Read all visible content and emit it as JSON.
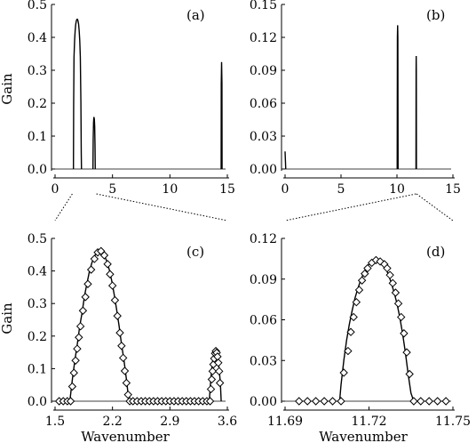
{
  "figure": {
    "ylabel": "Gain",
    "xlabel": "Wavenumber"
  },
  "chart_data": [
    {
      "id": "a",
      "type": "line",
      "panel_label": "(a)",
      "xlim": [
        0,
        15
      ],
      "ylim": [
        0,
        0.5
      ],
      "xticks": [
        0,
        5,
        10,
        15
      ],
      "xtick_labels": [
        "0",
        "5",
        "10",
        "15"
      ],
      "yticks": [
        0,
        0.1,
        0.2,
        0.3,
        0.4,
        0.5
      ],
      "ytick_labels": [
        "0.0",
        "0.1",
        "0.2",
        "0.3",
        "0.4",
        "0.5"
      ],
      "ylabel": "Gain",
      "xlabel": "",
      "series": [
        {
          "x": [
            1.6,
            1.62,
            1.65,
            1.7,
            1.75,
            1.8,
            1.85,
            1.9,
            1.95,
            2.0,
            2.05,
            2.1,
            2.15,
            2.2,
            2.25,
            2.28,
            2.3
          ],
          "y": [
            0.0,
            0.2,
            0.34,
            0.39,
            0.42,
            0.44,
            0.45,
            0.455,
            0.455,
            0.45,
            0.44,
            0.42,
            0.39,
            0.34,
            0.2,
            0.05,
            0.0
          ]
        },
        {
          "x": [
            3.3,
            3.32,
            3.35,
            3.38,
            3.42,
            3.45,
            3.48,
            3.5
          ],
          "y": [
            0.0,
            0.09,
            0.14,
            0.158,
            0.152,
            0.13,
            0.07,
            0.0
          ]
        },
        {
          "x": [
            14.46,
            14.47,
            14.5,
            14.53,
            14.54
          ],
          "y": [
            0.0,
            0.26,
            0.325,
            0.26,
            0.0
          ]
        }
      ]
    },
    {
      "id": "b",
      "type": "line",
      "panel_label": "(b)",
      "xlim": [
        0,
        15
      ],
      "ylim": [
        0,
        0.15
      ],
      "xticks": [
        0,
        5,
        10,
        15
      ],
      "xtick_labels": [
        "0",
        "5",
        "10",
        "15"
      ],
      "yticks": [
        0,
        0.03,
        0.06,
        0.09,
        0.12,
        0.15
      ],
      "ytick_labels": [
        "0.00",
        "0.03",
        "0.06",
        "0.09",
        "0.12",
        "0.15"
      ],
      "xlabel": "",
      "series": [
        {
          "x": [
            0.0,
            0.03,
            0.06
          ],
          "y": [
            0.016,
            0.008,
            0.0
          ]
        },
        {
          "x": [
            10.02,
            10.04,
            10.06,
            10.08,
            10.1
          ],
          "y": [
            0.0,
            0.12,
            0.131,
            0.12,
            0.0
          ]
        },
        {
          "x": [
            11.7,
            11.71,
            11.72,
            11.73,
            11.74
          ],
          "y": [
            0.0,
            0.09,
            0.103,
            0.09,
            0.0
          ]
        }
      ]
    },
    {
      "id": "c",
      "type": "line",
      "panel_label": "(c)",
      "xlim": [
        1.5,
        3.6
      ],
      "ylim": [
        0,
        0.5
      ],
      "xticks": [
        1.5,
        2.2,
        2.9,
        3.6
      ],
      "xtick_labels": [
        "1.5",
        "2.2",
        "2.9",
        "3.6"
      ],
      "yticks": [
        0,
        0.1,
        0.2,
        0.3,
        0.4,
        0.5
      ],
      "ytick_labels": [
        "0.0",
        "0.1",
        "0.2",
        "0.3",
        "0.4",
        "0.5"
      ],
      "ylabel": "Gain",
      "xlabel": "Wavenumber",
      "series": [
        {
          "x": [
            1.5,
            1.55,
            1.6,
            1.65,
            1.7,
            1.75,
            1.8,
            1.85,
            1.9,
            1.95,
            2.0,
            2.05,
            2.1,
            2.15,
            2.2,
            2.25,
            2.3,
            2.35,
            2.4,
            2.45,
            2.5,
            2.55,
            2.6,
            2.65,
            2.7,
            2.75,
            2.8,
            2.85,
            2.9,
            2.95,
            3.0,
            3.05,
            3.1,
            3.15,
            3.2,
            3.25,
            3.3,
            3.35,
            3.4,
            3.45,
            3.5,
            3.55,
            3.6
          ],
          "y": [
            0.0,
            0.0,
            0.0,
            0.0,
            0.0,
            0.0,
            0.0,
            0.0,
            0.0,
            0.0,
            0.0,
            0.0,
            0.0,
            0.0,
            0.0,
            0.0,
            0.0,
            0.0,
            0.0,
            0.0,
            0.0,
            0.0,
            0.0,
            0.0,
            0.0,
            0.0,
            0.0,
            0.0,
            0.0,
            0.0,
            0.0,
            0.0,
            0.0,
            0.0,
            0.0,
            0.0,
            0.0,
            0.0,
            0.0,
            0.0,
            0.0,
            0.0,
            0.0
          ],
          "role": "axis"
        },
        {
          "x": [
            1.67,
            1.68,
            1.71,
            1.74,
            1.77,
            1.8,
            1.83,
            1.86,
            1.89,
            1.92,
            1.95,
            1.98,
            2.01,
            2.04,
            2.07,
            2.1,
            2.13,
            2.16,
            2.19,
            2.22,
            2.25,
            2.28,
            2.31,
            2.34,
            2.37,
            2.4,
            2.43,
            2.46,
            2.47
          ],
          "y": [
            0.0,
            0.0,
            0.065,
            0.123,
            0.173,
            0.229,
            0.273,
            0.325,
            0.363,
            0.4,
            0.426,
            0.445,
            0.457,
            0.461,
            0.458,
            0.448,
            0.43,
            0.405,
            0.371,
            0.329,
            0.282,
            0.232,
            0.175,
            0.126,
            0.067,
            0.0,
            0.0,
            0.0,
            0.0
          ]
        },
        {
          "x": [
            3.38,
            3.395,
            3.41,
            3.425,
            3.44,
            3.455,
            3.47,
            3.485,
            3.5,
            3.515,
            3.525
          ],
          "y": [
            0.0,
            0.056,
            0.1,
            0.132,
            0.15,
            0.157,
            0.15,
            0.132,
            0.1,
            0.056,
            0.0
          ]
        }
      ],
      "markers": {
        "x": [
          1.55,
          1.6,
          1.65,
          1.69,
          1.71,
          1.73,
          1.75,
          1.77,
          1.79,
          1.81,
          1.84,
          1.87,
          1.9,
          1.94,
          1.98,
          2.02,
          2.06,
          2.1,
          2.14,
          2.17,
          2.2,
          2.23,
          2.26,
          2.29,
          2.31,
          2.33,
          2.35,
          2.37,
          2.39,
          2.41,
          2.45,
          2.5,
          2.55,
          2.6,
          2.65,
          2.7,
          2.75,
          2.8,
          2.85,
          2.9,
          2.95,
          3.0,
          3.05,
          3.1,
          3.15,
          3.2,
          3.25,
          3.3,
          3.35,
          3.39,
          3.4,
          3.41,
          3.42,
          3.43,
          3.44,
          3.45,
          3.46,
          3.47,
          3.48,
          3.49,
          3.5,
          3.51
        ],
        "y": [
          0.0,
          0.0,
          0.0,
          0.0,
          0.045,
          0.087,
          0.125,
          0.161,
          0.196,
          0.23,
          0.278,
          0.32,
          0.36,
          0.404,
          0.437,
          0.457,
          0.461,
          0.448,
          0.421,
          0.39,
          0.355,
          0.31,
          0.262,
          0.21,
          0.17,
          0.133,
          0.093,
          0.056,
          0.02,
          0.0,
          0.0,
          0.0,
          0.0,
          0.0,
          0.0,
          0.0,
          0.0,
          0.0,
          0.0,
          0.0,
          0.0,
          0.0,
          0.0,
          0.0,
          0.0,
          0.0,
          0.0,
          0.0,
          0.0,
          0.0,
          0.037,
          0.067,
          0.092,
          0.113,
          0.131,
          0.147,
          0.154,
          0.149,
          0.137,
          0.118,
          0.092,
          0.056
        ]
      }
    },
    {
      "id": "d",
      "type": "line",
      "panel_label": "(d)",
      "xlim": [
        11.69,
        11.75
      ],
      "ylim": [
        0,
        0.12
      ],
      "xticks": [
        11.69,
        11.72,
        11.75
      ],
      "xtick_labels": [
        "11.69",
        "11.72",
        "11.75"
      ],
      "yticks": [
        0,
        0.03,
        0.06,
        0.09,
        0.12
      ],
      "ytick_labels": [
        "0.00",
        "0.03",
        "0.06",
        "0.09",
        "0.12"
      ],
      "xlabel": "Wavenumber",
      "series": [
        {
          "x": [
            11.7095,
            11.71,
            11.711,
            11.712,
            11.713,
            11.714,
            11.715,
            11.716,
            11.717,
            11.718,
            11.719,
            11.72,
            11.721,
            11.722,
            11.723,
            11.724,
            11.725,
            11.726,
            11.727,
            11.728,
            11.729,
            11.73,
            11.731,
            11.732,
            11.733,
            11.734,
            11.735,
            11.736,
            11.7365
          ],
          "y": [
            0.0,
            0.012,
            0.03,
            0.045,
            0.057,
            0.067,
            0.076,
            0.083,
            0.089,
            0.094,
            0.098,
            0.101,
            0.103,
            0.104,
            0.104,
            0.103,
            0.101,
            0.098,
            0.093,
            0.087,
            0.08,
            0.072,
            0.062,
            0.05,
            0.036,
            0.02,
            0.006,
            0.0,
            0.0
          ]
        }
      ],
      "markers": {
        "x": [
          11.695,
          11.698,
          11.701,
          11.704,
          11.707,
          11.71,
          11.711,
          11.7125,
          11.7135,
          11.7145,
          11.7155,
          11.7165,
          11.7175,
          11.7185,
          11.7195,
          11.721,
          11.7225,
          11.724,
          11.7255,
          11.7265,
          11.7275,
          11.7285,
          11.7295,
          11.7305,
          11.7315,
          11.7325,
          11.7335,
          11.7345,
          11.736,
          11.7385,
          11.7415,
          11.7445,
          11.7475
        ],
        "y": [
          0.0,
          0.0,
          0.0,
          0.0,
          0.0,
          0.0,
          0.021,
          0.037,
          0.051,
          0.062,
          0.073,
          0.082,
          0.089,
          0.094,
          0.098,
          0.102,
          0.104,
          0.103,
          0.101,
          0.098,
          0.093,
          0.087,
          0.08,
          0.072,
          0.062,
          0.05,
          0.036,
          0.02,
          0.0,
          0.0,
          0.0,
          0.0,
          0.0
        ]
      }
    }
  ]
}
